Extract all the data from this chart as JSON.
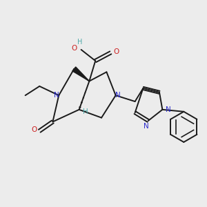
{
  "bg_color": "#ececec",
  "bond_color": "#1a1a1a",
  "N_color": "#2b2bcc",
  "O_color": "#cc2222",
  "H_color": "#4ca8a8",
  "figsize": [
    3.0,
    3.0
  ],
  "dpi": 100,
  "xlim": [
    0,
    10
  ],
  "ylim": [
    0,
    10
  ]
}
